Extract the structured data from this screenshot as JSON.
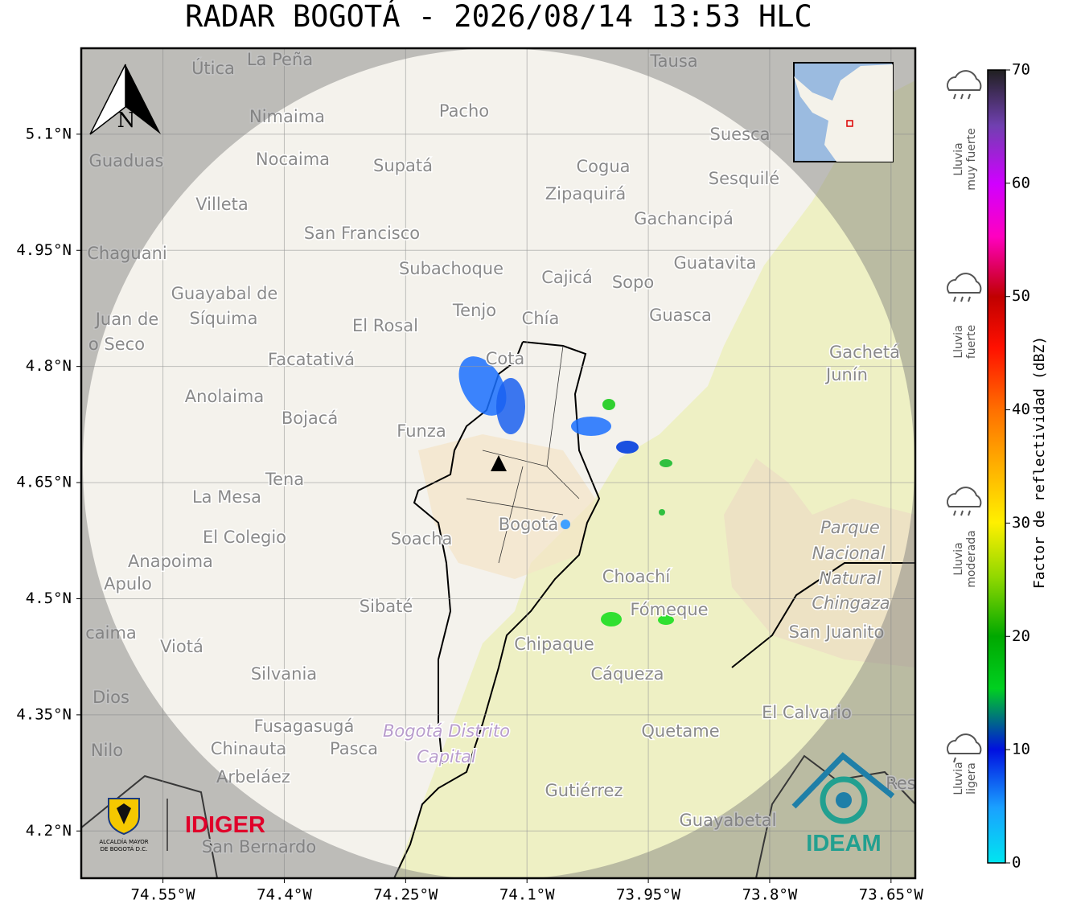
{
  "title": "RADAR BOGOTÁ - 2026/08/14 13:53 HLC",
  "map": {
    "xlim": [
      -74.651,
      -73.62
    ],
    "ylim": [
      4.139,
      5.211
    ],
    "xticks": [
      {
        "value": -74.55,
        "label": "74.55°W"
      },
      {
        "value": -74.4,
        "label": "74.4°W"
      },
      {
        "value": -74.25,
        "label": "74.25°W"
      },
      {
        "value": -74.1,
        "label": "74.1°W"
      },
      {
        "value": -73.95,
        "label": "73.95°W"
      },
      {
        "value": -73.8,
        "label": "73.8°W"
      },
      {
        "value": -73.65,
        "label": "73.65°W"
      }
    ],
    "yticks": [
      {
        "value": 5.1,
        "label": "5.1°N"
      },
      {
        "value": 4.95,
        "label": "4.95°N"
      },
      {
        "value": 4.8,
        "label": "4.8°N"
      },
      {
        "value": 4.65,
        "label": "4.65°N"
      },
      {
        "value": 4.5,
        "label": "4.5°N"
      },
      {
        "value": 4.35,
        "label": "4.35°N"
      },
      {
        "value": 4.2,
        "label": "4.2°N"
      }
    ],
    "grid": true,
    "north_label": "N",
    "places": [
      "La Peña",
      "Útica",
      "Tausa",
      "Pacho",
      "Nimaima",
      "Suesca",
      "Guaduas",
      "Nocaima",
      "Supatá",
      "Cogua",
      "Sesquilé",
      "Zipaquirá",
      "Villeta",
      "Gachancipá",
      "San Francisco",
      "Guatavita",
      "Chaguani",
      "Subachoque",
      "Cajicá",
      "Sopo",
      "Guayabal de",
      "Síquima",
      "Tenjo",
      "Chía",
      "Guasca",
      "Juan de",
      "El Rosal",
      "o Seco",
      "Gachetá",
      "Junín",
      "Facatativá",
      "Cota",
      "Anolaima",
      "Bojacá",
      "Funza",
      "Tena",
      "La Mesa",
      "Bogotá",
      "Parque",
      "Soacha",
      "El Colegio",
      "Nacional",
      "Anapoima",
      "Natural",
      "Choachí",
      "Apulo",
      "Chingaza",
      "Sibaté",
      "Fómeque",
      "San Juanito",
      "caima",
      "Chipaque",
      "Viotá",
      "Silvania",
      "Cáqueza",
      "Dios",
      "El Calvario",
      "Fusagasugá",
      "Bogotá Distrito",
      "Quetame",
      "Nilo",
      "Chinauta",
      "Pasca",
      "Capital",
      "Arbeláez",
      "Gutiérrez",
      "Res",
      "Guayabetal",
      "San Bernardo"
    ],
    "logos": {
      "alcaldia": [
        "ALCALDÍA MAYOR",
        "DE BOGOTÁ D.C."
      ],
      "idiger": "IDIGER",
      "ideam": "IDEAM"
    }
  },
  "colorbar": {
    "label": "Factor de reflectividad (dBZ)",
    "lim": [
      0,
      70
    ],
    "ticks": [
      0,
      10,
      20,
      30,
      40,
      50,
      60,
      70
    ]
  },
  "rain_legend": [
    [
      "Lluvia",
      "muy fuerte"
    ],
    [
      "Lluvia",
      "fuerte"
    ],
    [
      "Lluvia",
      "moderada"
    ],
    [
      "Lluvia",
      "ligera"
    ]
  ]
}
